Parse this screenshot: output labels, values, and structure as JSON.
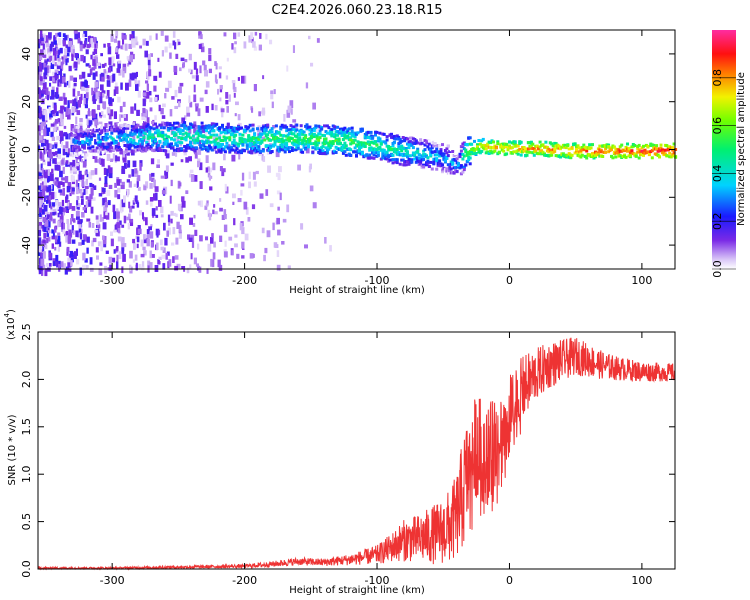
{
  "chart_data": [
    {
      "type": "heatmap",
      "title": "C2E4.2026.060.23.18.R15",
      "xlabel": "Height of straight line (km)",
      "ylabel": "Frequency (Hz)",
      "xlim": [
        -356,
        125
      ],
      "ylim": [
        -50,
        50
      ],
      "xticks": [
        -300,
        -200,
        -100,
        0,
        100
      ],
      "yticks": [
        -40,
        -20,
        0,
        20,
        40
      ],
      "xtick_labels": [
        "-300",
        "-200",
        "-100",
        "0",
        "100"
      ],
      "ytick_labels": [
        "-40",
        "-20",
        "0",
        "20",
        "40"
      ],
      "signal_track": {
        "x": [
          -330,
          -270,
          -250,
          -200,
          -150,
          -120,
          -100,
          -80,
          -60,
          -50,
          -40,
          -35,
          -30,
          -20,
          0,
          20,
          50,
          80,
          100,
          125
        ],
        "freq": [
          4,
          6,
          6,
          5,
          5,
          4,
          2,
          0,
          -2,
          -3,
          -6,
          -2,
          1,
          2,
          1,
          1,
          0,
          0,
          0,
          0
        ],
        "amplitude": [
          0.3,
          0.45,
          0.5,
          0.5,
          0.55,
          0.55,
          0.5,
          0.45,
          0.4,
          0.35,
          0.3,
          0.5,
          0.65,
          0.75,
          0.8,
          0.8,
          0.85,
          0.85,
          0.9,
          0.9
        ]
      },
      "noise_extent_km": -135,
      "colorbar": {
        "label": "Normalized spectral amplitude",
        "range": [
          0,
          1
        ],
        "ticks": [
          0.0,
          0.2,
          0.4,
          0.6,
          0.8
        ],
        "tick_labels": [
          "0.0",
          "0.2",
          "0.4",
          "0.6",
          "0.8"
        ]
      }
    },
    {
      "type": "line",
      "xlabel": "Height of straight line (km)",
      "ylabel": "SNR (10 * v/v)",
      "yscale_note": "(x10",
      "yscale_exp": "4",
      "xlim": [
        -356,
        125
      ],
      "ylim": [
        0,
        2.5
      ],
      "xticks": [
        -300,
        -200,
        -100,
        0,
        100
      ],
      "yticks": [
        0.0,
        0.5,
        1.0,
        1.5,
        2.0,
        2.5
      ],
      "xtick_labels": [
        "-300",
        "-200",
        "-100",
        "0",
        "100"
      ],
      "ytick_labels": [
        "0.0",
        "0.5",
        "1.0",
        "1.5",
        "2.0",
        "2.5"
      ],
      "series": [
        {
          "name": "SNR",
          "color": "#ee3333",
          "x": [
            -356,
            -300,
            -250,
            -200,
            -180,
            -160,
            -140,
            -120,
            -100,
            -90,
            -80,
            -70,
            -60,
            -50,
            -45,
            -40,
            -35,
            -30,
            -25,
            -20,
            -15,
            -10,
            -5,
            0,
            5,
            10,
            20,
            30,
            40,
            50,
            60,
            70,
            80,
            90,
            100,
            110,
            125
          ],
          "y": [
            0.01,
            0.01,
            0.02,
            0.03,
            0.05,
            0.08,
            0.07,
            0.1,
            0.15,
            0.22,
            0.3,
            0.32,
            0.35,
            0.4,
            0.45,
            0.55,
            0.8,
            1.1,
            1.3,
            1.25,
            1.2,
            1.3,
            1.45,
            1.6,
            1.75,
            1.9,
            2.05,
            2.15,
            2.2,
            2.25,
            2.2,
            2.15,
            2.12,
            2.1,
            2.08,
            2.08,
            2.07
          ],
          "noise_amp": [
            0.01,
            0.01,
            0.015,
            0.02,
            0.03,
            0.04,
            0.04,
            0.06,
            0.1,
            0.15,
            0.22,
            0.25,
            0.3,
            0.35,
            0.4,
            0.45,
            0.6,
            0.6,
            0.55,
            0.55,
            0.55,
            0.55,
            0.5,
            0.45,
            0.4,
            0.35,
            0.28,
            0.25,
            0.22,
            0.2,
            0.18,
            0.15,
            0.13,
            0.12,
            0.11,
            0.1,
            0.1
          ]
        }
      ]
    }
  ]
}
